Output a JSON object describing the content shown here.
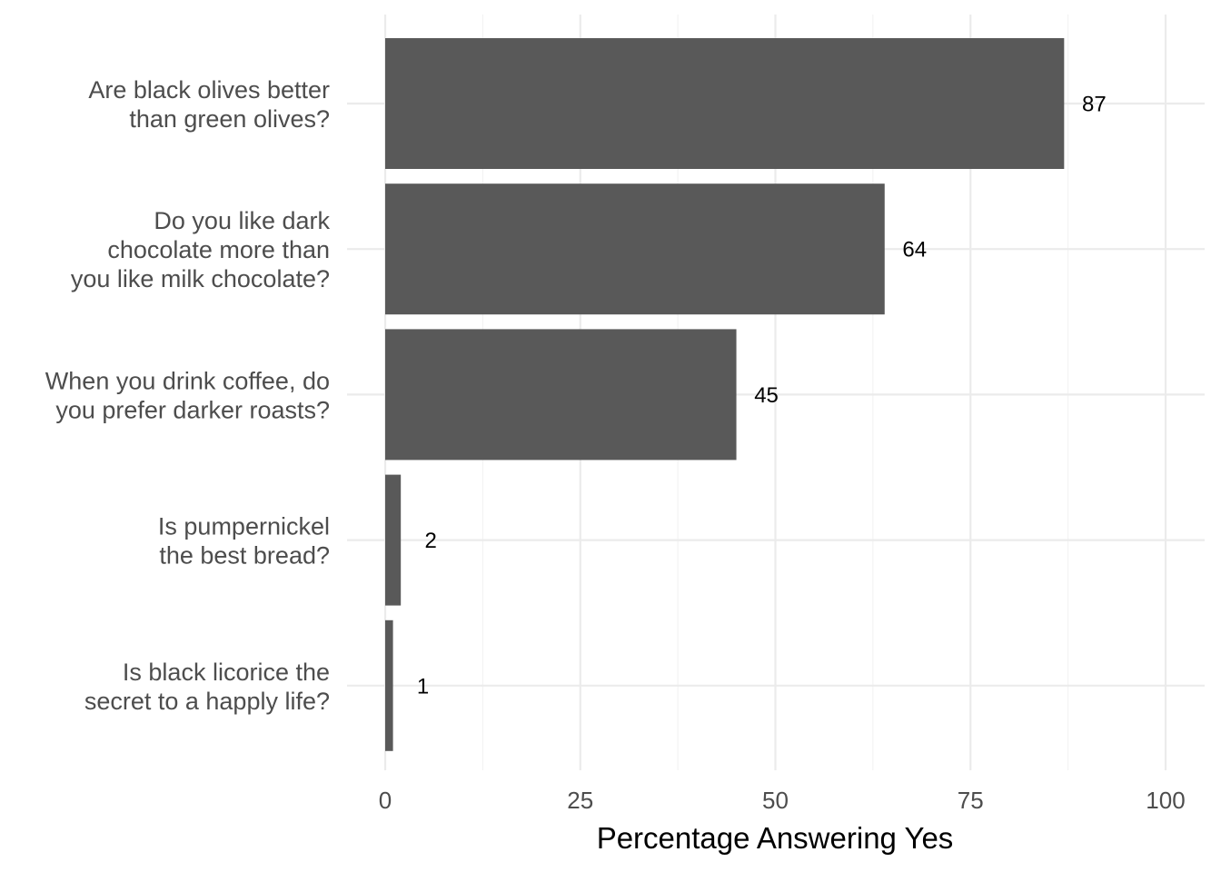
{
  "chart_data": {
    "type": "bar",
    "orientation": "horizontal",
    "title": "",
    "xlabel": "Percentage Answering Yes",
    "ylabel": "",
    "xlim": [
      0,
      100
    ],
    "x_ticks": [
      0,
      25,
      50,
      75,
      100
    ],
    "grid": true,
    "legend": "none",
    "bar_color": "#595959",
    "categories": [
      "Are black olives better than green olives?",
      "Do you like dark chocolate more than you like milk chocolate?",
      "When you drink coffee, do you prefer darker roasts?",
      "Is pumpernickel the best bread?",
      "Is black licorice the secret to a happly life?"
    ],
    "category_lines": [
      [
        "Are black olives better",
        "than green olives?"
      ],
      [
        "Do you like dark",
        "chocolate more than",
        "you like milk chocolate?"
      ],
      [
        "When you drink coffee, do",
        "you prefer darker roasts?"
      ],
      [
        "Is pumpernickel",
        "the best bread?"
      ],
      [
        "Is black licorice the",
        "secret to a happly life?"
      ]
    ],
    "values": [
      87,
      64,
      45,
      2,
      1
    ],
    "data_labels": [
      "87",
      "64",
      "45",
      "2",
      "1"
    ]
  }
}
